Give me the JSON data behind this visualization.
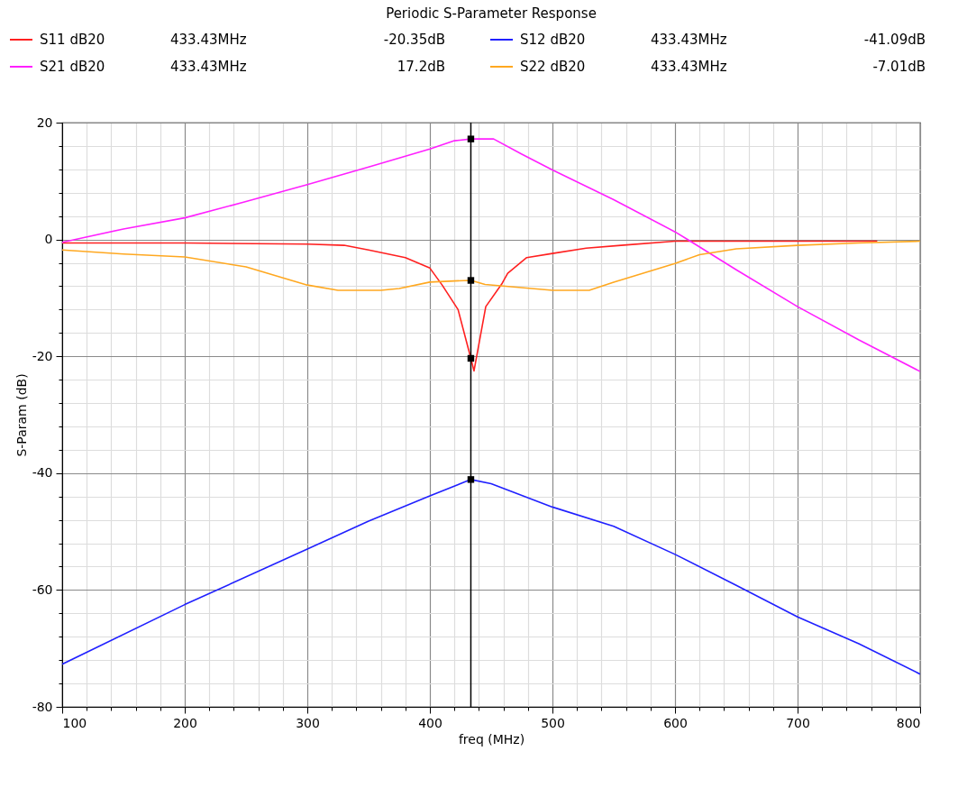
{
  "chart_data": {
    "type": "line",
    "title": "Periodic S-Parameter Response",
    "xlabel": "freq (MHz)",
    "ylabel": "S-Param (dB)",
    "xlim": [
      100,
      800
    ],
    "ylim": [
      -80,
      20
    ],
    "xticks": [
      100,
      {
        "value": 120,
        "label": null
      },
      {
        "value": 140,
        "label": null
      },
      {
        "value": 160,
        "label": null
      },
      {
        "value": 180,
        "label": null
      },
      200,
      {
        "value": 220,
        "label": null
      },
      {
        "value": 240,
        "label": null
      },
      {
        "value": 260,
        "label": null
      },
      {
        "value": 280,
        "label": null
      },
      300,
      {
        "value": 320,
        "label": null
      },
      {
        "value": 340,
        "label": null
      },
      {
        "value": 360,
        "label": null
      },
      {
        "value": 380,
        "label": null
      },
      400,
      {
        "value": 420,
        "label": null
      },
      {
        "value": 440,
        "label": null
      },
      {
        "value": 460,
        "label": null
      },
      {
        "value": 480,
        "label": null
      },
      500,
      {
        "value": 520,
        "label": null
      },
      {
        "value": 540,
        "label": null
      },
      {
        "value": 560,
        "label": null
      },
      {
        "value": 580,
        "label": null
      },
      600,
      {
        "value": 620,
        "label": null
      },
      {
        "value": 640,
        "label": null
      },
      {
        "value": 660,
        "label": null
      },
      {
        "value": 680,
        "label": null
      },
      700,
      {
        "value": 720,
        "label": null
      },
      {
        "value": 740,
        "label": null
      },
      {
        "value": 760,
        "label": null
      },
      {
        "value": 780,
        "label": null
      },
      800
    ],
    "yticks": [
      -80,
      {
        "value": -76,
        "label": null
      },
      {
        "value": -72,
        "label": null
      },
      {
        "value": -68,
        "label": null
      },
      {
        "value": -64,
        "label": null
      },
      -60,
      {
        "value": -56,
        "label": null
      },
      {
        "value": -52,
        "label": null
      },
      {
        "value": -48,
        "label": null
      },
      {
        "value": -44,
        "label": null
      },
      -40,
      {
        "value": -36,
        "label": null
      },
      {
        "value": -32,
        "label": null
      },
      {
        "value": -28,
        "label": null
      },
      {
        "value": -24,
        "label": null
      },
      -20,
      {
        "value": -16,
        "label": null
      },
      {
        "value": -12,
        "label": null
      },
      {
        "value": -8,
        "label": null
      },
      {
        "value": -4,
        "label": null
      },
      0,
      {
        "value": 4,
        "label": null
      },
      {
        "value": 8,
        "label": null
      },
      {
        "value": 12,
        "label": null
      },
      {
        "value": 16,
        "label": null
      },
      20
    ],
    "grid": true,
    "legend": "top",
    "line_style": "solid",
    "annotations": [
      "433.43MHz",
      "-20.35dB",
      "433.43MHz",
      "-41.09dB",
      "433.43MHz",
      "17.2dB",
      "433.43MHz",
      "-7.01dB"
    ],
    "ref_lines": [
      {
        "axis": "x",
        "value": 433.43,
        "color": "#000000"
      }
    ],
    "series": [
      {
        "name": "S11 dB20",
        "color": "#ff2020",
        "x": [
          100,
          200,
          300,
          330,
          350,
          380,
          400,
          410,
          423,
          433.43,
          436,
          445.6,
          459,
          463.5,
          479,
          500,
          527.5,
          556,
          600,
          700,
          765
        ],
        "values": [
          -0.6,
          -0.6,
          -0.8,
          -1.0,
          -1.8,
          -3.1,
          -4.9,
          -7.8,
          -12,
          -20.35,
          -22.5,
          -11.5,
          -7.5,
          -5.8,
          -3.1,
          -2.4,
          -1.5,
          -1.0,
          -0.3,
          -0.3,
          -0.3
        ]
      },
      {
        "name": "S12 dB20",
        "color": "#2020ff",
        "x": [
          100,
          200,
          300,
          350,
          400,
          433.43,
          450,
          500,
          550,
          600,
          650,
          700,
          750,
          800
        ],
        "values": [
          -72.7,
          -62.5,
          -53.0,
          -48.2,
          -43.9,
          -41.09,
          -41.8,
          -45.8,
          -49.1,
          -53.9,
          -59.2,
          -64.6,
          -69.2,
          -74.4
        ]
      },
      {
        "name": "S21 dB20",
        "color": "#ff20ff",
        "x": [
          100,
          150,
          200,
          250,
          300,
          350,
          400,
          420,
          433.43,
          452,
          475,
          500,
          550,
          600,
          611,
          650,
          700,
          750,
          800
        ],
        "values": [
          -0.5,
          1.8,
          3.7,
          6.5,
          9.4,
          12.4,
          15.5,
          16.9,
          17.2,
          17.2,
          14.6,
          11.9,
          6.8,
          1.3,
          -0.1,
          -5.2,
          -11.5,
          -17.2,
          -22.6
        ]
      },
      {
        "name": "S22 dB20",
        "color": "#ffa820",
        "x": [
          100,
          150,
          200,
          250,
          300,
          325,
          360,
          375,
          400,
          420,
          433.43,
          445,
          500,
          530,
          550,
          600,
          620,
          650,
          700,
          750,
          800
        ],
        "values": [
          -1.8,
          -2.5,
          -3.0,
          -4.7,
          -7.8,
          -8.7,
          -8.7,
          -8.4,
          -7.3,
          -7.1,
          -7.01,
          -7.7,
          -8.7,
          -8.7,
          -7.3,
          -4.1,
          -2.6,
          -1.6,
          -1.0,
          -0.6,
          -0.3
        ]
      },
      {
        "type": "scatter",
        "color": "#000000",
        "marker": "square",
        "x": [
          433.43,
          433.43,
          433.43,
          433.43
        ],
        "values": [
          -20.35,
          -41.09,
          17.2,
          -7.01
        ]
      }
    ]
  }
}
